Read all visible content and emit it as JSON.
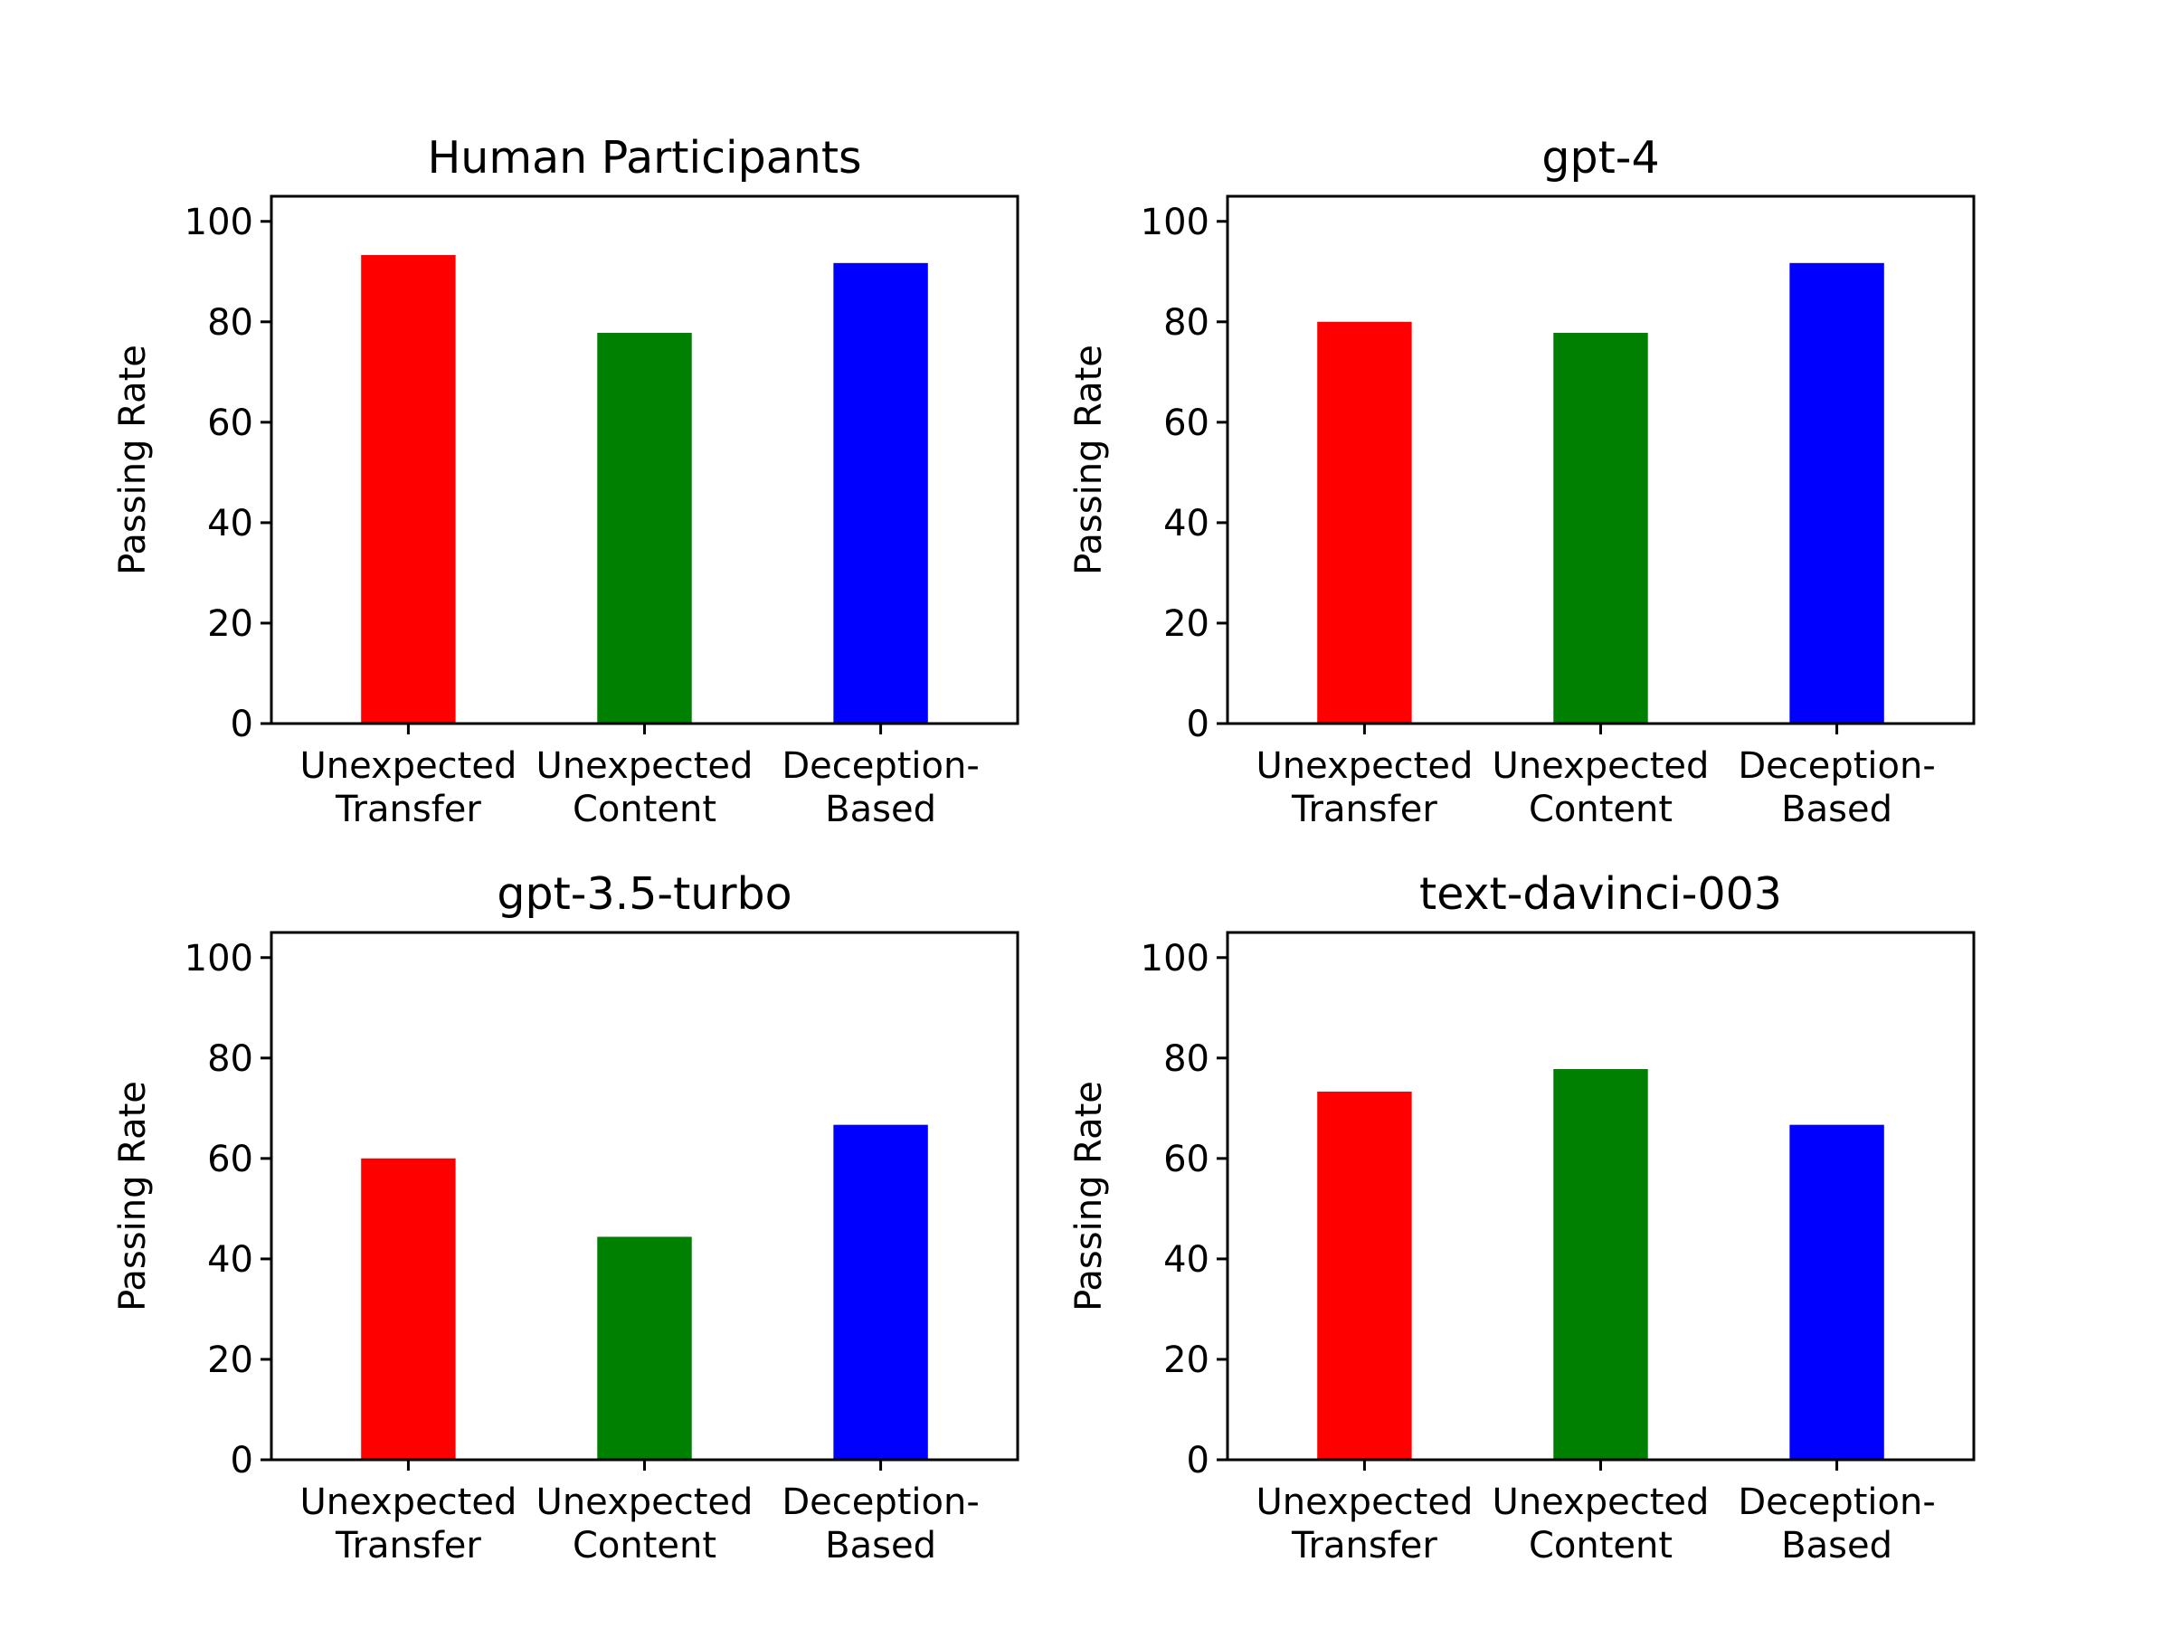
{
  "figure": {
    "colors": [
      "#ff0000",
      "#008000",
      "#0000ff"
    ]
  },
  "chart_data": [
    {
      "type": "bar",
      "title": "Human Participants",
      "ylabel": "Passing Rate",
      "xlabel": "",
      "categories": [
        [
          "Unexpected",
          "Transfer"
        ],
        [
          "Unexpected",
          "Content"
        ],
        [
          "Deception-",
          "Based"
        ]
      ],
      "values": [
        93.3,
        77.8,
        91.7
      ],
      "ylim": [
        0,
        105
      ],
      "yticks": [
        0,
        20,
        40,
        60,
        80,
        100
      ],
      "grid": false
    },
    {
      "type": "bar",
      "title": "gpt-4",
      "ylabel": "Passing Rate",
      "xlabel": "",
      "categories": [
        [
          "Unexpected",
          "Transfer"
        ],
        [
          "Unexpected",
          "Content"
        ],
        [
          "Deception-",
          "Based"
        ]
      ],
      "values": [
        80.0,
        77.8,
        91.7
      ],
      "ylim": [
        0,
        105
      ],
      "yticks": [
        0,
        20,
        40,
        60,
        80,
        100
      ],
      "grid": false
    },
    {
      "type": "bar",
      "title": "gpt-3.5-turbo",
      "ylabel": "Passing Rate",
      "xlabel": "",
      "categories": [
        [
          "Unexpected",
          "Transfer"
        ],
        [
          "Unexpected",
          "Content"
        ],
        [
          "Deception-",
          "Based"
        ]
      ],
      "values": [
        60.0,
        44.4,
        66.7
      ],
      "ylim": [
        0,
        105
      ],
      "yticks": [
        0,
        20,
        40,
        60,
        80,
        100
      ],
      "grid": false
    },
    {
      "type": "bar",
      "title": "text-davinci-003",
      "ylabel": "Passing Rate",
      "xlabel": "",
      "categories": [
        [
          "Unexpected",
          "Transfer"
        ],
        [
          "Unexpected",
          "Content"
        ],
        [
          "Deception-",
          "Based"
        ]
      ],
      "values": [
        73.3,
        77.8,
        66.7
      ],
      "ylim": [
        0,
        105
      ],
      "yticks": [
        0,
        20,
        40,
        60,
        80,
        100
      ],
      "grid": false
    }
  ]
}
